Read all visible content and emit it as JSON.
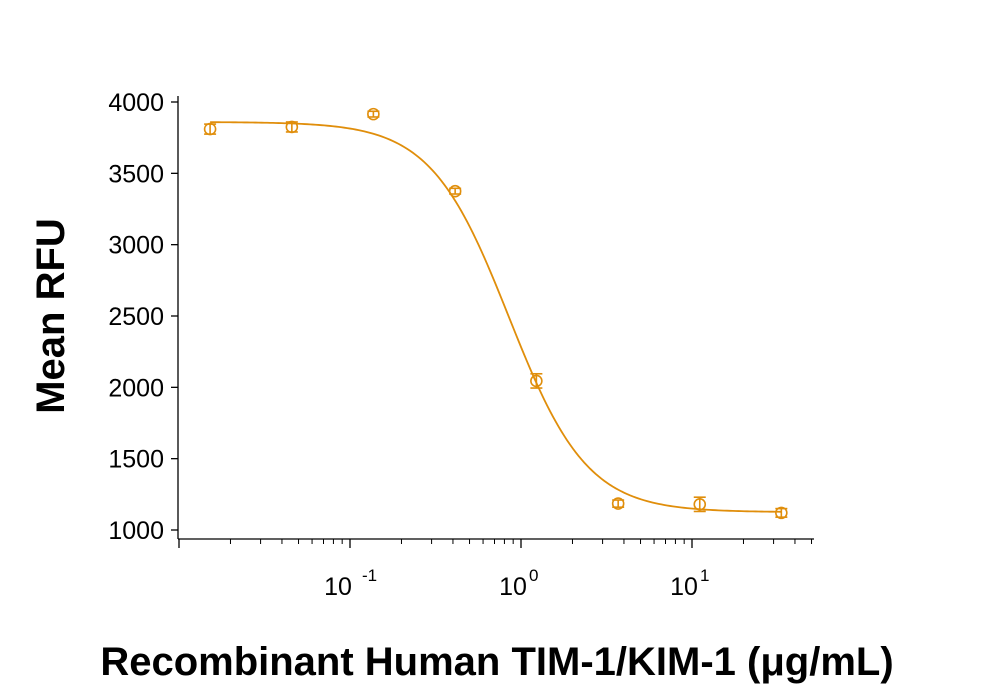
{
  "chart_data": {
    "type": "scatter",
    "title": "",
    "xlabel": "Recombinant Human TIM-1/KIM-1 (μg/mL)",
    "ylabel": "Mean RFU",
    "x_scale": "log",
    "xlim": [
      0.01,
      50
    ],
    "ylim": [
      1000,
      4000
    ],
    "yticks": [
      1000,
      1500,
      2000,
      2500,
      3000,
      3500,
      4000
    ],
    "ytick_labels": [
      "1000",
      "1500",
      "2000",
      "2500",
      "3000",
      "3500",
      "4000"
    ],
    "xticks": [
      {
        "value": 0.1,
        "base": "10",
        "exponent": "-1"
      },
      {
        "value": 1,
        "base": "10",
        "exponent": "0"
      },
      {
        "value": 10,
        "base": "10",
        "exponent": "1"
      }
    ],
    "grid": false,
    "color": "#E08E0B",
    "series": [
      {
        "points": [
          {
            "x": 0.0152,
            "y": 3810,
            "err": 35
          },
          {
            "x": 0.0457,
            "y": 3825,
            "err": 35
          },
          {
            "x": 0.137,
            "y": 3915,
            "err": 20
          },
          {
            "x": 0.412,
            "y": 3375,
            "err": 20
          },
          {
            "x": 1.23,
            "y": 2045,
            "err": 50
          },
          {
            "x": 3.7,
            "y": 1185,
            "err": 25
          },
          {
            "x": 11.1,
            "y": 1180,
            "err": 50
          },
          {
            "x": 33.3,
            "y": 1120,
            "err": 30
          }
        ],
        "fit": {
          "bottom": 1125,
          "top": 3860,
          "ec50": 0.85,
          "hill": 1.9
        }
      }
    ]
  }
}
